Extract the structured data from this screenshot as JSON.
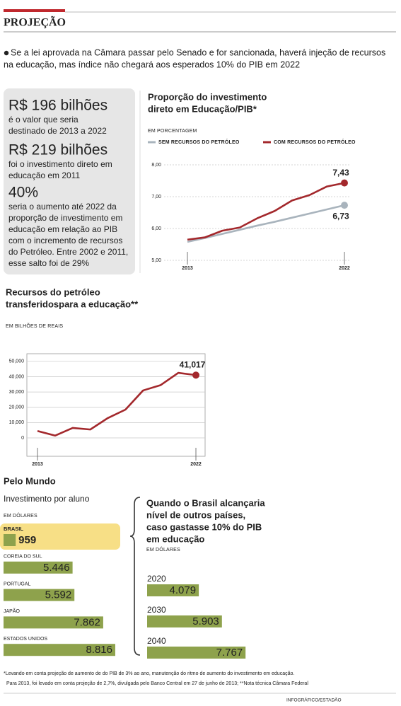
{
  "header": {
    "section": "PROJEÇÃO",
    "lead": [
      "Se a lei aprovada na Câmara passar pelo Senado e for sancionada, haverá injeção de recursos",
      "na educação, mas índice não chegará aos esperados 10% do PIB em 2022"
    ]
  },
  "stats": [
    {
      "value": "R$ 196 bilhões",
      "text": [
        "é o valor que seria",
        "destinado de 2013 a 2022"
      ]
    },
    {
      "value": "R$ 219 bilhões",
      "text": [
        "foi o investimento direto em",
        "educação em 2011"
      ]
    },
    {
      "value": "40%",
      "text": [
        "seria o aumento até 2022 da",
        "proporção de investimento em",
        "educação em relação ao PIB",
        "com o incremento de recursos",
        "do Petróleo. Entre 2002 e 2011,",
        "esse salto foi de 29%"
      ]
    }
  ],
  "section": "Pelo Mundo",
  "chart_data": [
    {
      "type": "line",
      "title": [
        "Proporção do investimento",
        "direto em Educação/PIB*"
      ],
      "y_label": "EM PORCENTAGEM",
      "x": [
        2013,
        2014,
        2015,
        2016,
        2017,
        2018,
        2019,
        2020,
        2021,
        2022
      ],
      "xlim": [
        2013,
        2022
      ],
      "xticks": [
        2013,
        2022
      ],
      "ylim": [
        5,
        8
      ],
      "yticks": [
        {
          "value": 5,
          "label": "5,00"
        },
        {
          "value": 6,
          "label": "6,00"
        },
        {
          "value": 7,
          "label": "7,00"
        },
        {
          "value": 8,
          "label": "8,00"
        }
      ],
      "grid": true,
      "legend": "top",
      "series": [
        {
          "name": "SEM RECURSOS DO PETRÓLEO",
          "color": "#a9b4bd",
          "values": [
            5.58,
            5.7,
            5.83,
            5.96,
            6.09,
            6.21,
            6.34,
            6.47,
            6.6,
            6.73
          ],
          "value_labels": [
            null,
            null,
            null,
            null,
            null,
            null,
            null,
            null,
            null,
            "6,73"
          ]
        },
        {
          "name": "COM RECURSOS DO PETRÓLEO",
          "color": "#a3282c",
          "values": [
            5.65,
            5.72,
            5.93,
            6.03,
            6.32,
            6.55,
            6.88,
            7.05,
            7.32,
            7.43
          ],
          "value_labels": [
            null,
            null,
            null,
            null,
            null,
            null,
            null,
            null,
            null,
            "7,43"
          ]
        }
      ]
    },
    {
      "type": "line",
      "title": [
        "Recursos do petróleo",
        "transferidospara a educação**"
      ],
      "y_label": "EM BILHÕES DE REAIS",
      "x": [
        2013,
        2014,
        2015,
        2016,
        2017,
        2018,
        2019,
        2020,
        2021,
        2022
      ],
      "xlim": [
        2013,
        2022
      ],
      "xticks": [
        2013,
        2022
      ],
      "ylim": [
        -12,
        55
      ],
      "yticks": [
        0,
        {
          "value": 10,
          "label": "10,000"
        },
        {
          "value": 20,
          "label": "20,000"
        },
        {
          "value": 30,
          "label": "30,000"
        },
        {
          "value": 40,
          "label": "40,000"
        },
        {
          "value": 50,
          "label": "50,000"
        }
      ],
      "grid": true,
      "series": [
        {
          "color": "#a3282c",
          "values": [
            4.5,
            1.5,
            6.5,
            5.5,
            13,
            18.5,
            31,
            34.5,
            42.5,
            41.017
          ],
          "value_labels": [
            null,
            null,
            null,
            null,
            null,
            null,
            null,
            null,
            null,
            "41,017"
          ]
        }
      ]
    },
    {
      "type": "bar",
      "orientation": "horizontal",
      "title": "Investimento por aluno",
      "y_label": "EM DÓLARES",
      "categories": [
        "BRASIL",
        "COREIA DO SUL",
        "PORTUGAL",
        "JAPÃO",
        "ESTADOS UNIDOS"
      ],
      "values": [
        959,
        5446,
        5592,
        7862,
        8816
      ],
      "value_labels": [
        "959",
        "5.446",
        "5.592",
        "7.862",
        "8.816"
      ],
      "color": "#8ea24c",
      "highlight_index": 0,
      "highlight_color": "#f7df86"
    },
    {
      "type": "bar",
      "orientation": "horizontal",
      "title": [
        "Quando o Brasil alcançaria",
        "nível de outros países,",
        "caso gastasse 10% do PIB",
        "em educação"
      ],
      "y_label": "EM DÓLARES",
      "categories": [
        "2020",
        "2030",
        "2040"
      ],
      "values": [
        4079,
        5903,
        7767
      ],
      "value_labels": [
        "4.079",
        "5.903",
        "7.767"
      ],
      "color": "#8ea24c"
    }
  ],
  "footnotes": [
    "*Levando em conta projeção de aumento de do PIB de 3% ao ano, manutenção do ritmo de aumento do investimento em educação.",
    "Para 2013, foi levado em conta projeção de 2,7%, divulgada pelo Banco Central em 27 de junho de 2013; **Nota técnica Câmara Federal"
  ],
  "credit": "INFOGRÁFICO/ESTADÃO"
}
